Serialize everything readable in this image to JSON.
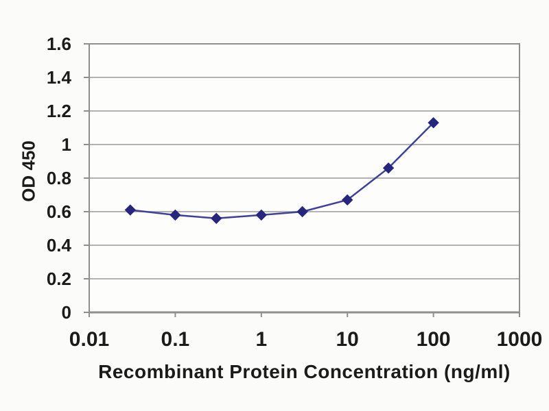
{
  "chart_data": {
    "type": "line",
    "title": "",
    "xlabel": "Recombinant Protein Concentration (ng/ml)",
    "ylabel": "OD 450",
    "x_scale": "log",
    "xlim": [
      0.01,
      1000
    ],
    "ylim": [
      0,
      1.6
    ],
    "x_ticks": [
      "0.01",
      "0.1",
      "1",
      "10",
      "100",
      "1000"
    ],
    "y_ticks": [
      "0",
      "0.2",
      "0.4",
      "0.6",
      "0.8",
      "1",
      "1.2",
      "1.4",
      "1.6"
    ],
    "grid": "horizontal",
    "legend": "none",
    "series": [
      {
        "marker": "diamond",
        "x": [
          0.03,
          0.1,
          0.3,
          1,
          3,
          10,
          30,
          100
        ],
        "y": [
          0.61,
          0.58,
          0.56,
          0.58,
          0.6,
          0.67,
          0.86,
          1.13
        ]
      }
    ],
    "colors": {
      "line": "#40409a",
      "marker": "#26267d",
      "grid": "#b2b2b2",
      "frame": "#8f8f8f",
      "tick": "#8f8f8f",
      "text": "#1b1b1b",
      "background": "#fbfbf9",
      "plot_background": "#fdfdfc"
    }
  }
}
